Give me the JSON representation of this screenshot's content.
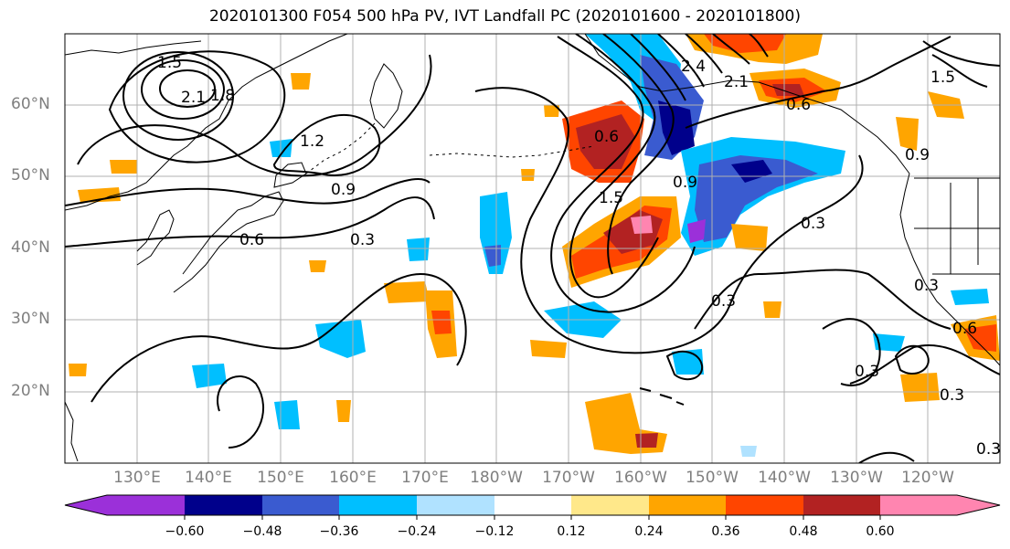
{
  "figure": {
    "title": "2020101300 F054 500 hPa PV, IVT Landfall PC (2020101600 - 2020101800)"
  },
  "map": {
    "lat_labels": [
      "60°N",
      "50°N",
      "40°N",
      "30°N",
      "20°N"
    ],
    "lon_labels": [
      "130°E",
      "140°E",
      "150°E",
      "160°E",
      "170°E",
      "180°W",
      "170°W",
      "160°W",
      "150°W",
      "140°W",
      "130°W",
      "120°W"
    ],
    "contour_labels": [
      "1.5",
      "2.1",
      "1.8",
      "1.2",
      "0.9",
      "0.6",
      "0.3",
      "1.5",
      "2.4",
      "0.6",
      "0.9",
      "2.1",
      "0.3",
      "0.3",
      "0.3",
      "0.6",
      "0.9",
      "1.5",
      "0.3",
      "0.3",
      "0.6",
      "0.3"
    ],
    "colors": {
      "neg_060": "#9b30d9",
      "neg_048": "#00008b",
      "neg_036": "#3a5bd0",
      "neg_024": "#00bfff",
      "neg_012": "#b0e2ff",
      "neutral": "#ffffff",
      "pos_012": "#ffe88a",
      "pos_024": "#ffa500",
      "pos_036": "#ff4500",
      "pos_048": "#b22222",
      "pos_060": "#ff85b0",
      "coast": "#000000",
      "grid": "#b0b0b0"
    }
  },
  "colorbar": {
    "tick_labels": [
      "−0.60",
      "−0.48",
      "−0.36",
      "−0.24",
      "−0.12",
      "0.12",
      "0.24",
      "0.36",
      "0.48",
      "0.60"
    ]
  }
}
